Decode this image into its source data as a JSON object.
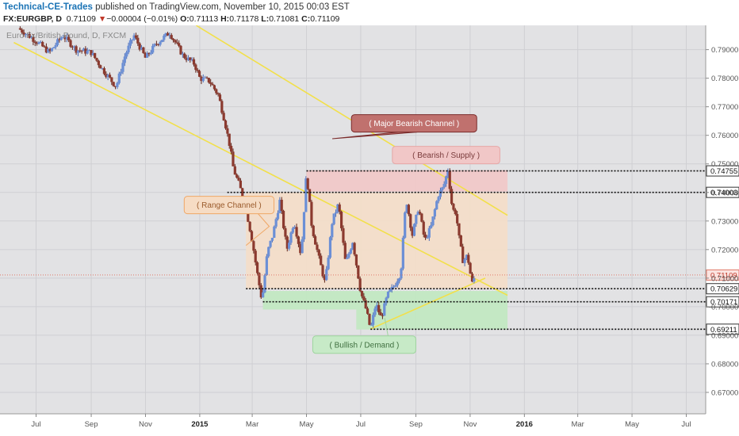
{
  "header": {
    "author": "Technical-CE-Trades",
    "published": " published on TradingView.com, November 10, 2015 00:03 EST",
    "symbol": "FX:EURGBP, D",
    "last": "0.71109",
    "arrow": "▼",
    "change": "−0.00004 (−0.01%)",
    "o_label": "O:",
    "o": "0.71113",
    "h_label": "H:",
    "h": "0.71178",
    "l_label": "L:",
    "l": "0.71081",
    "c_label": "C:",
    "c": "0.71109"
  },
  "chart_data": {
    "type": "candlestick",
    "title": "Euro Fx/British Pound, D, FXCM",
    "ylim": [
      0.6625,
      0.7985
    ],
    "y_ticks": [
      "0.79000",
      "0.78000",
      "0.77000",
      "0.76000",
      "0.75000",
      "0.74000",
      "0.73000",
      "0.72000",
      "0.71000",
      "0.70000",
      "0.69000",
      "0.68000",
      "0.67000"
    ],
    "x_ticks": [
      {
        "label": "Jul",
        "t": 0
      },
      {
        "label": "Sep",
        "t": 62
      },
      {
        "label": "Nov",
        "t": 123
      },
      {
        "label": "2015",
        "t": 184
      },
      {
        "label": "Mar",
        "t": 243
      },
      {
        "label": "May",
        "t": 304
      },
      {
        "label": "Jul",
        "t": 365
      },
      {
        "label": "Sep",
        "t": 427
      },
      {
        "label": "Nov",
        "t": 488
      },
      {
        "label": "2016",
        "t": 549
      },
      {
        "label": "Mar",
        "t": 609
      },
      {
        "label": "May",
        "t": 670
      },
      {
        "label": "Jul",
        "t": 731
      }
    ],
    "path": [
      [
        -20,
        0.7975
      ],
      [
        0,
        0.793
      ],
      [
        15,
        0.789
      ],
      [
        30,
        0.795
      ],
      [
        45,
        0.79
      ],
      [
        62,
        0.789
      ],
      [
        75,
        0.783
      ],
      [
        90,
        0.777
      ],
      [
        100,
        0.788
      ],
      [
        110,
        0.795
      ],
      [
        123,
        0.787
      ],
      [
        135,
        0.792
      ],
      [
        150,
        0.796
      ],
      [
        165,
        0.788
      ],
      [
        178,
        0.785
      ],
      [
        184,
        0.78
      ],
      [
        195,
        0.779
      ],
      [
        205,
        0.774
      ],
      [
        212,
        0.765
      ],
      [
        218,
        0.756
      ],
      [
        222,
        0.748
      ],
      [
        228,
        0.743
      ],
      [
        235,
        0.736
      ],
      [
        243,
        0.723
      ],
      [
        249,
        0.711
      ],
      [
        254,
        0.702
      ],
      [
        260,
        0.719
      ],
      [
        266,
        0.725
      ],
      [
        274,
        0.737
      ],
      [
        282,
        0.72
      ],
      [
        290,
        0.73
      ],
      [
        298,
        0.718
      ],
      [
        304,
        0.747
      ],
      [
        310,
        0.728
      ],
      [
        318,
        0.717
      ],
      [
        325,
        0.708
      ],
      [
        333,
        0.73
      ],
      [
        340,
        0.736
      ],
      [
        348,
        0.715
      ],
      [
        356,
        0.723
      ],
      [
        365,
        0.705
      ],
      [
        371,
        0.699
      ],
      [
        376,
        0.692
      ],
      [
        382,
        0.701
      ],
      [
        388,
        0.696
      ],
      [
        395,
        0.704
      ],
      [
        402,
        0.707
      ],
      [
        410,
        0.712
      ],
      [
        416,
        0.738
      ],
      [
        423,
        0.725
      ],
      [
        430,
        0.735
      ],
      [
        437,
        0.723
      ],
      [
        444,
        0.728
      ],
      [
        452,
        0.739
      ],
      [
        458,
        0.742
      ],
      [
        463,
        0.748
      ],
      [
        468,
        0.734
      ],
      [
        472,
        0.733
      ],
      [
        476,
        0.723
      ],
      [
        480,
        0.716
      ],
      [
        485,
        0.718
      ],
      [
        490,
        0.708
      ],
      [
        494,
        0.7111
      ]
    ],
    "levels": [
      "0.74755",
      "0.74003",
      "0.71109",
      "0.70629",
      "0.70171",
      "0.69211"
    ],
    "zones": [
      {
        "kind": "supply",
        "t0": 304,
        "t1": 530,
        "y0": 0.7403,
        "y1": 0.7478
      },
      {
        "kind": "range",
        "t0": 236,
        "t1": 530,
        "y0": 0.7063,
        "y1": 0.74
      },
      {
        "kind": "demand",
        "t0": 255,
        "t1": 530,
        "y0": 0.699,
        "y1": 0.7055
      },
      {
        "kind": "demand",
        "t0": 360,
        "t1": 530,
        "y0": 0.692,
        "y1": 0.699
      }
    ],
    "trendlines": [
      {
        "t0": -25,
        "y0": 0.7925,
        "t1": 530,
        "y1": 0.704
      },
      {
        "t0": 180,
        "y0": 0.7985,
        "t1": 530,
        "y1": 0.732
      },
      {
        "t0": 376,
        "y0": 0.6922,
        "t1": 505,
        "y1": 0.71
      }
    ],
    "annotations": [
      {
        "text": "( Major Bearish Channel )",
        "style": "callout",
        "t": 425,
        "y": 0.7642
      },
      {
        "text": "( Bearish  / Supply )",
        "style": "pink",
        "t": 461,
        "y": 0.7531
      },
      {
        "text": "( Range Channel )",
        "style": "orange",
        "t": 217,
        "y": 0.7356
      },
      {
        "text": "( Bullish / Demand )",
        "style": "green",
        "t": 369,
        "y": 0.6867
      }
    ]
  }
}
